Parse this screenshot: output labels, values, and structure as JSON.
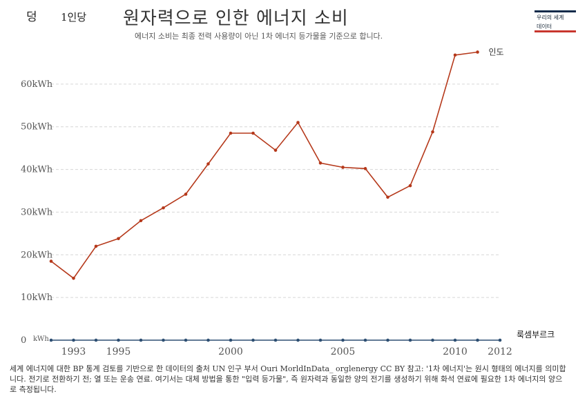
{
  "header": {
    "corner_glyph": "덩",
    "per_capita_label": "1인당",
    "title": "원자력으로 인한 에너지 소비",
    "subtitle": "에너지 소비는 최종 전력 사용량이 아닌 1차 에너지 등가물을 기준으로 합니다."
  },
  "logo": {
    "line1": "우리의 세계",
    "line2": "데이터",
    "colors": {
      "top": "#0d2a4a",
      "bottom": "#c8362e"
    }
  },
  "chart_data": {
    "type": "line",
    "x": [
      1992,
      1993,
      1994,
      1995,
      1996,
      1997,
      1998,
      1999,
      2000,
      2001,
      2002,
      2003,
      2004,
      2005,
      2006,
      2007,
      2008,
      2009,
      2010,
      2011,
      2012
    ],
    "x_tick_labels": [
      {
        "x": 1993,
        "label": "1993"
      },
      {
        "x": 1995,
        "label": "1995"
      },
      {
        "x": 2000,
        "label": "2000"
      },
      {
        "x": 2005,
        "label": "2005"
      },
      {
        "x": 2010,
        "label": "2010"
      },
      {
        "x": 2012,
        "label": "2012"
      }
    ],
    "y_tick_labels": [
      {
        "y": 0,
        "label": "0"
      },
      {
        "y": 10,
        "label": "10kWh"
      },
      {
        "y": 20,
        "label": "20kWh"
      },
      {
        "y": 30,
        "label": "30kWh"
      },
      {
        "y": 40,
        "label": "40kWh"
      },
      {
        "y": 50,
        "label": "50kWh"
      },
      {
        "y": 60,
        "label": "60kWh"
      }
    ],
    "zero_unit_label": "kWh",
    "ylim": [
      0,
      70
    ],
    "xlim": [
      1992,
      2012
    ],
    "grid": "horizontal dashed",
    "series": [
      {
        "name": "인도",
        "color": "#b5381a",
        "values": [
          18.5,
          14.5,
          22,
          23.8,
          28,
          31,
          34.2,
          41.3,
          48.5,
          48.5,
          44.5,
          51,
          41.5,
          40.5,
          40.2,
          33.5,
          36.2,
          48.8,
          66.8,
          67.5,
          null
        ]
      },
      {
        "name": "룩셈부르크",
        "color": "#2d4e72",
        "values": [
          0,
          0,
          0,
          0,
          0,
          0,
          0,
          0,
          0,
          0,
          0,
          0,
          0,
          0,
          0,
          0,
          0,
          0,
          0,
          0,
          0
        ]
      }
    ]
  },
  "footer": {
    "note": "세계 에너지에 대한 BP 통계 검토를 기반으로 한 데이터의 출처 UN 인구 부서 Ouri MorldInData_ orglenergy CC BY 참고: '1차 에너지'는 원시 형태의 에너지를 의미합니다. 전기로 전환하기 전; 열 또는 운송 연료. 여기서는 대체 방법을 통한 \"입력 등가물\", 즉 원자력과 동일한 양의 전기를 생성하기 위해 화석 연료에 필요한 1차 에너지의 양으로 측정됩니다."
  }
}
